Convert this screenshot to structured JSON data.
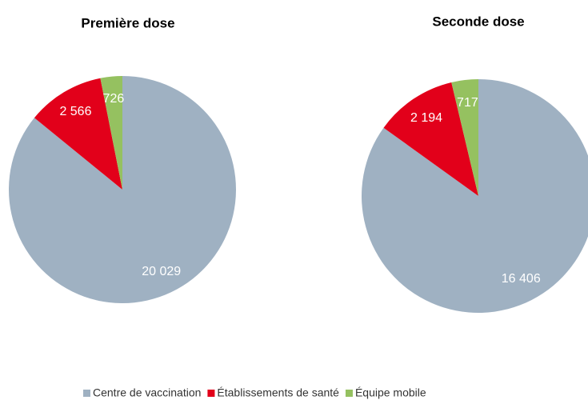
{
  "chart_data": [
    {
      "type": "pie",
      "title": "Première dose",
      "values": [
        20029,
        2566,
        726
      ],
      "value_labels": [
        "20 029",
        "2 566",
        "726"
      ]
    },
    {
      "type": "pie",
      "title": "Seconde dose",
      "values": [
        16406,
        2194,
        717
      ],
      "value_labels": [
        "16 406",
        "2 194",
        "717"
      ]
    }
  ],
  "legend": {
    "labels": [
      "Centre de vaccination",
      "Établissements de santé",
      "Équipe mobile"
    ],
    "colors": [
      "#9fb1c2",
      "#e2001a",
      "#95c160"
    ]
  }
}
